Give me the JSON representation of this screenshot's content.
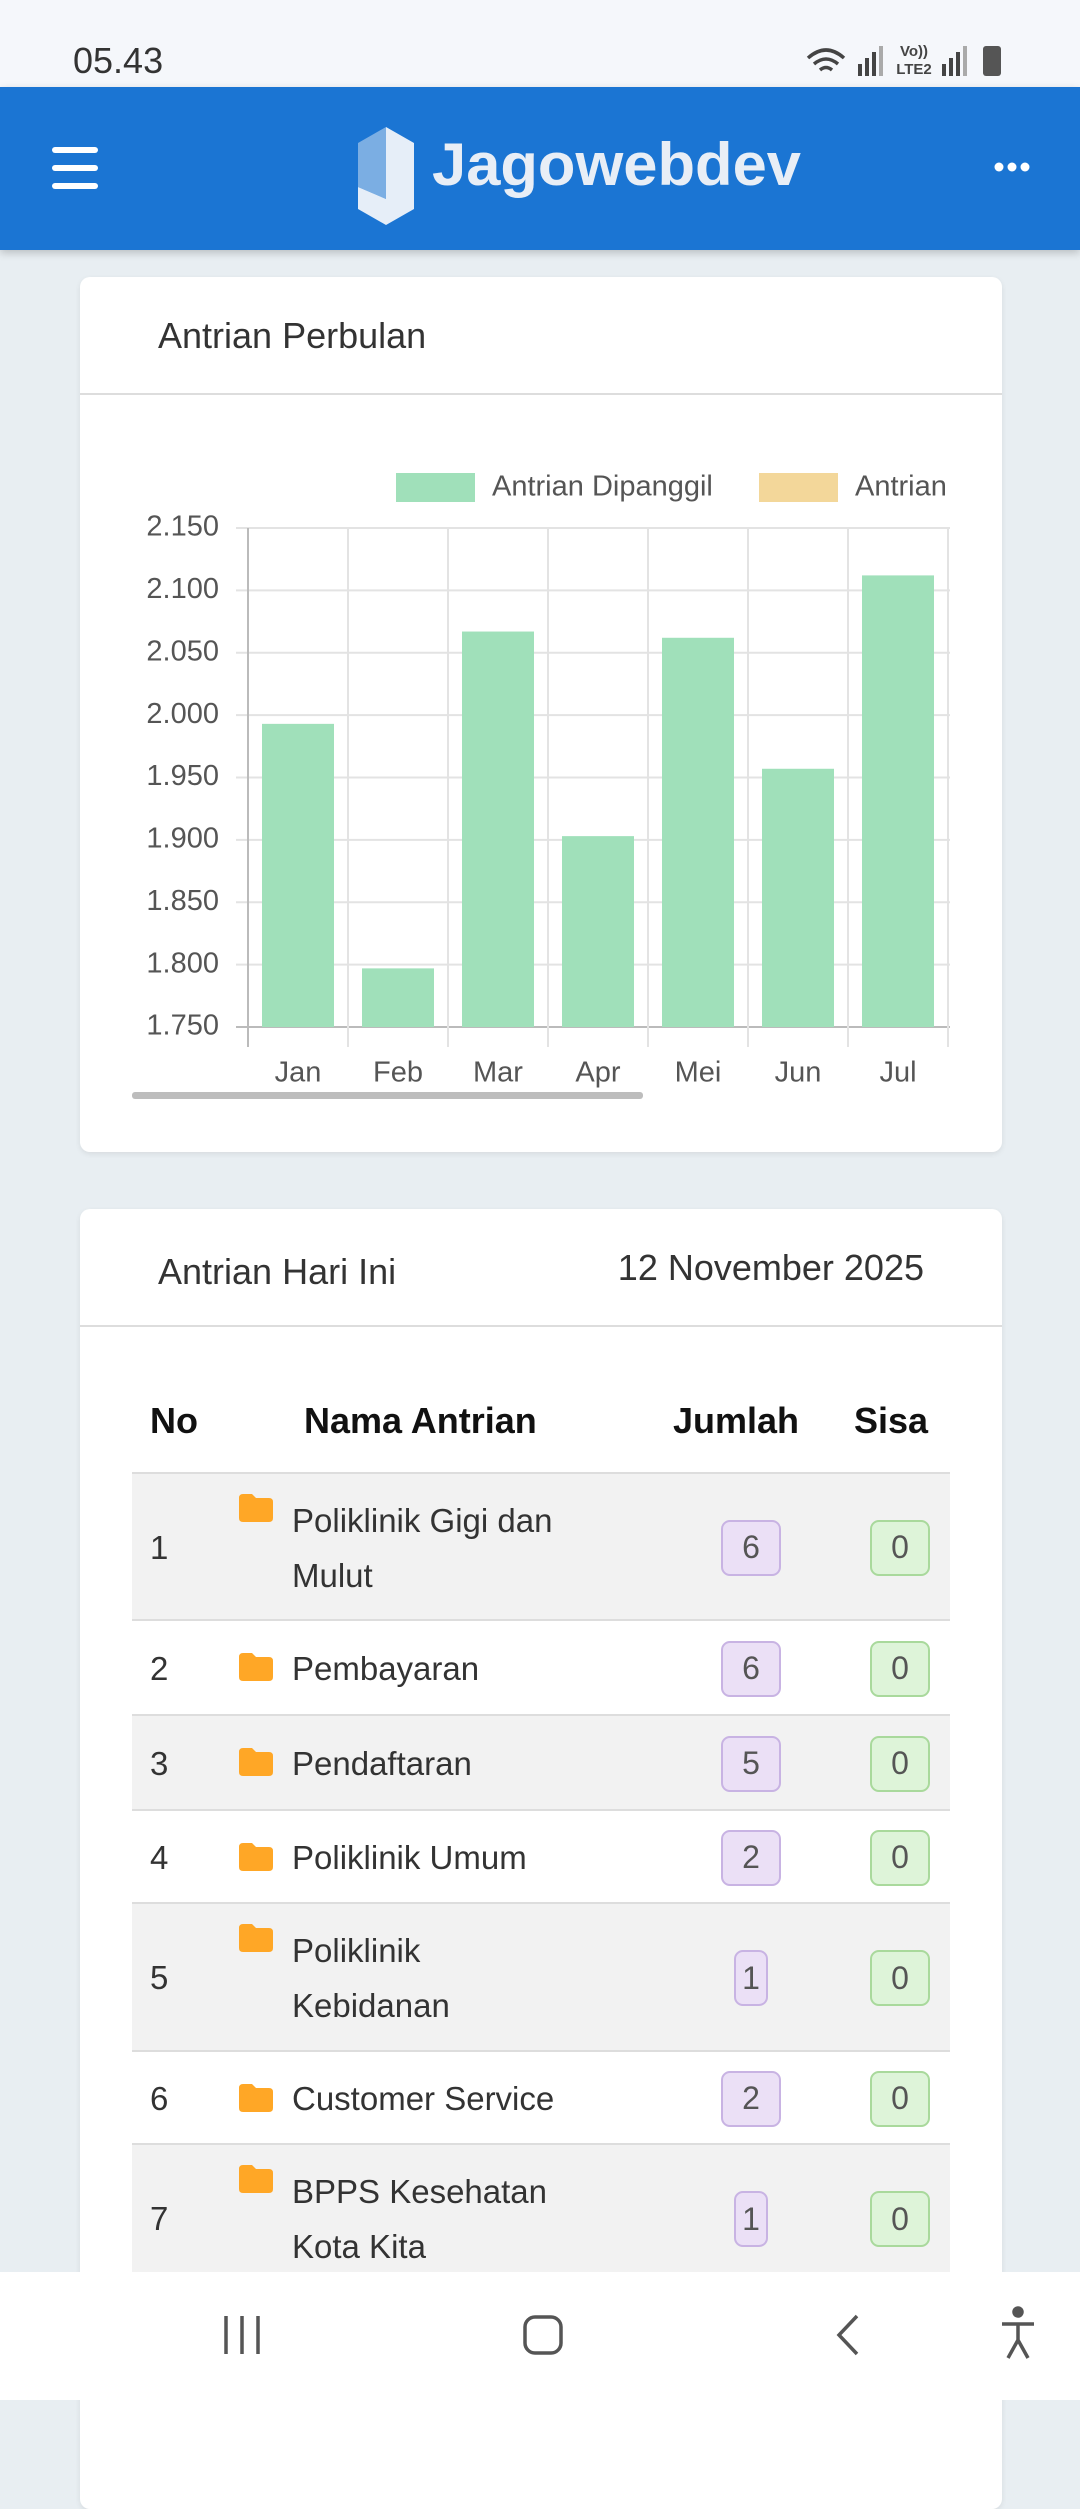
{
  "status_bar": {
    "time": "05.43"
  },
  "app_bar": {
    "title": "Jagowebdev"
  },
  "monthly_card": {
    "title": "Antrian Perbulan"
  },
  "chart_data": {
    "type": "bar",
    "categories": [
      "Jan",
      "Feb",
      "Mar",
      "Apr",
      "Mei",
      "Jun",
      "Jul"
    ],
    "series": [
      {
        "name": "Antrian Dipanggil",
        "color": "#a0e0ba",
        "values": [
          1993,
          1797,
          2067,
          1903,
          2062,
          1957,
          2112
        ]
      },
      {
        "name": "Antrian",
        "color": "#f3d79a",
        "values": [
          null,
          null,
          null,
          null,
          null,
          null,
          null
        ]
      }
    ],
    "ylim": [
      1750,
      2150
    ],
    "yticks": [
      {
        "value": 1750,
        "label": "1.750"
      },
      {
        "value": 1800,
        "label": "1.800"
      },
      {
        "value": 1850,
        "label": "1.850"
      },
      {
        "value": 1900,
        "label": "1.900"
      },
      {
        "value": 1950,
        "label": "1.950"
      },
      {
        "value": 2000,
        "label": "2.000"
      },
      {
        "value": 2050,
        "label": "2.050"
      },
      {
        "value": 2100,
        "label": "2.100"
      },
      {
        "value": 2150,
        "label": "2.150"
      }
    ],
    "grid": true
  },
  "today_card": {
    "title": "Antrian Hari Ini",
    "date": "12 November 2025",
    "table": {
      "columns": [
        "No",
        "Nama Antrian",
        "Jumlah",
        "Sisa"
      ],
      "rows": [
        [
          1,
          "Poliklinik Gigi dan Mulut",
          6,
          0
        ],
        [
          2,
          "Pembayaran",
          6,
          0
        ],
        [
          3,
          "Pendaftaran",
          5,
          0
        ],
        [
          4,
          "Poliklinik Umum",
          2,
          0
        ],
        [
          5,
          "Poliklinik Kebidanan",
          1,
          0
        ],
        [
          6,
          "Customer Service",
          2,
          0
        ],
        [
          7,
          "BPPS Kesehatan Kota Kita",
          1,
          0
        ]
      ]
    }
  }
}
